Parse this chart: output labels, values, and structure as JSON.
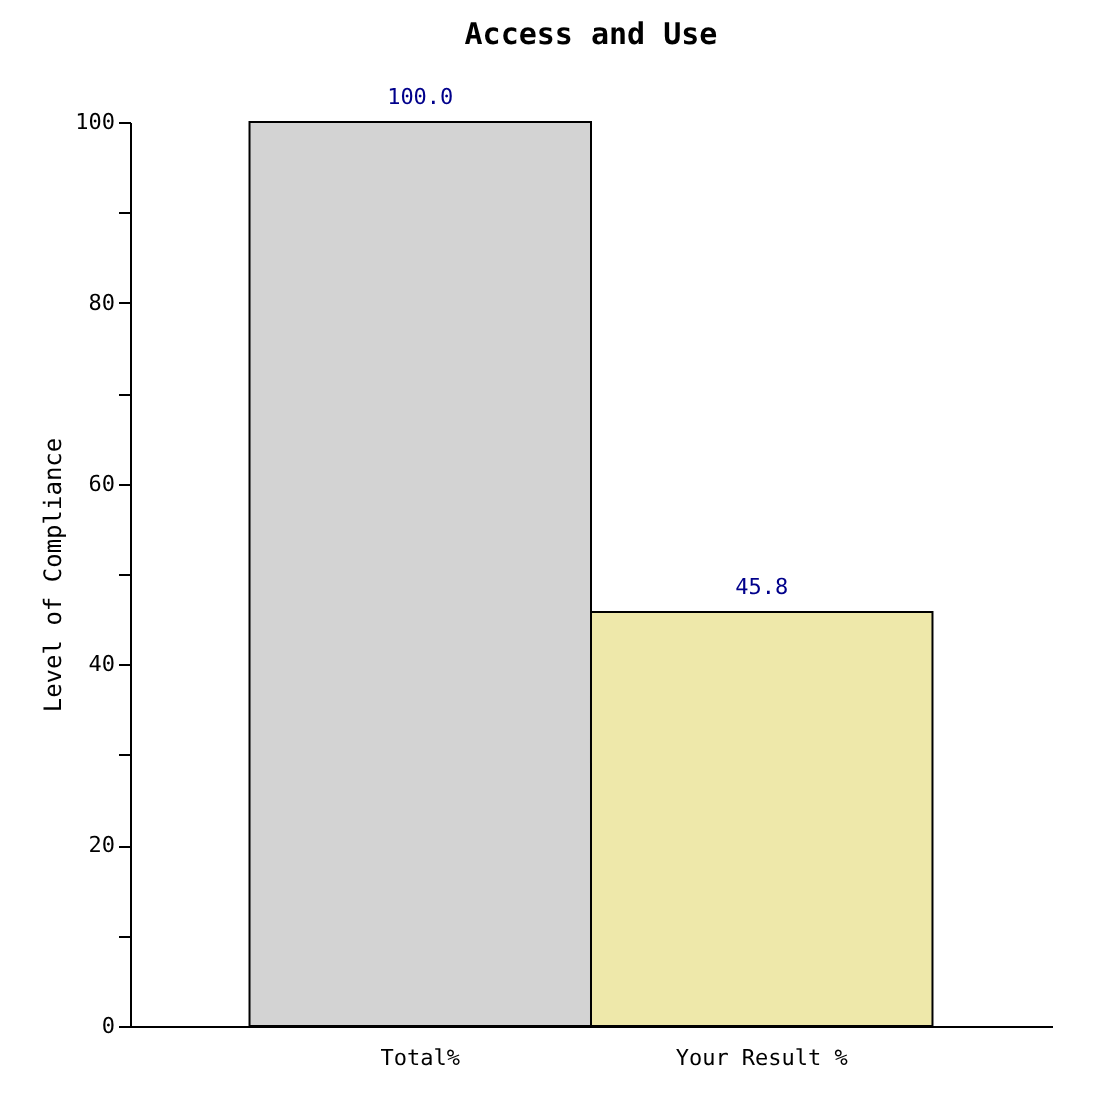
{
  "chart_data": {
    "type": "bar",
    "title": "Access and Use",
    "ylabel": "Level of Compliance",
    "categories": [
      "Total%",
      "Your Result %"
    ],
    "values": [
      100.0,
      45.8
    ],
    "colors": [
      "#d3d3d3",
      "#eee8aa"
    ],
    "value_labels": [
      "100.0",
      "45.8"
    ],
    "ylim": [
      0,
      100
    ],
    "yticks": [
      0,
      {
        "value": 10,
        "label": null
      },
      20,
      {
        "value": 30,
        "label": null
      },
      40,
      {
        "value": 50,
        "label": null
      },
      60,
      {
        "value": 70,
        "label": null
      },
      80,
      {
        "value": 90,
        "label": null
      },
      100
    ],
    "grid": false
  }
}
